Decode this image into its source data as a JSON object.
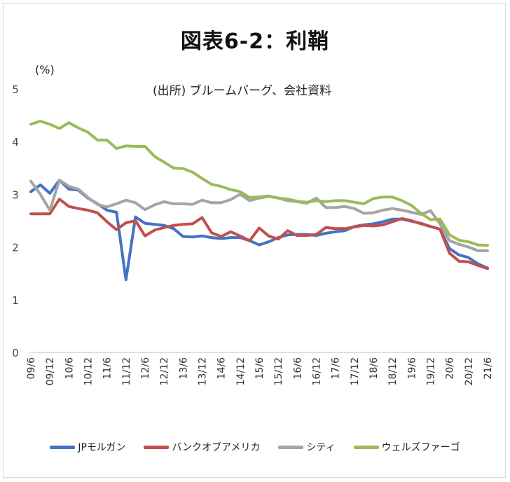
{
  "chart_data": {
    "type": "line",
    "title": "図表6-2：利鞘",
    "unit_label": "(%)",
    "source_note": "(出所)  ブルームバーグ、会社資料",
    "ylim": [
      0,
      5
    ],
    "yticks": [
      "0",
      "1",
      "2",
      "3",
      "4",
      "5"
    ],
    "grid": false,
    "legend_position": "bottom",
    "x_tick_labels": [
      "09/6",
      "09/12",
      "10/6",
      "10/12",
      "11/6",
      "11/12",
      "12/6",
      "12/12",
      "13/6",
      "13/12",
      "14/6",
      "14/12",
      "15/6",
      "15/12",
      "16/6",
      "16/12",
      "17/6",
      "17/12",
      "18/6",
      "18/12",
      "19/6",
      "19/12",
      "20/6",
      "20/12",
      "21/6"
    ],
    "x": [
      "09/6",
      "09/9",
      "09/12",
      "10/3",
      "10/6",
      "10/9",
      "10/12",
      "11/3",
      "11/6",
      "11/9",
      "11/12",
      "12/3",
      "12/6",
      "12/9",
      "12/12",
      "13/3",
      "13/6",
      "13/9",
      "13/12",
      "14/3",
      "14/6",
      "14/9",
      "14/12",
      "15/3",
      "15/6",
      "15/9",
      "15/12",
      "16/3",
      "16/6",
      "16/9",
      "16/12",
      "17/3",
      "17/6",
      "17/9",
      "17/12",
      "18/3",
      "18/6",
      "18/9",
      "18/12",
      "19/3",
      "19/6",
      "19/9",
      "19/12",
      "20/3",
      "20/6",
      "20/9",
      "20/12",
      "21/3",
      "21/6"
    ],
    "series": [
      {
        "name": "JPモルガン",
        "color": "#4472c4",
        "values": [
          3.05,
          3.18,
          3.02,
          3.27,
          3.1,
          3.08,
          2.93,
          2.82,
          2.7,
          2.66,
          1.38,
          2.57,
          2.45,
          2.43,
          2.41,
          2.35,
          2.2,
          2.19,
          2.21,
          2.18,
          2.16,
          2.18,
          2.18,
          2.12,
          2.04,
          2.1,
          2.18,
          2.23,
          2.24,
          2.24,
          2.22,
          2.26,
          2.29,
          2.31,
          2.39,
          2.42,
          2.44,
          2.48,
          2.53,
          2.53,
          2.49,
          2.45,
          2.39,
          2.34,
          1.97,
          1.85,
          1.8,
          1.68,
          1.6
        ]
      },
      {
        "name": "バンクオブアメリカ",
        "color": "#c0504d",
        "values": [
          2.63,
          2.63,
          2.63,
          2.91,
          2.77,
          2.73,
          2.7,
          2.65,
          2.48,
          2.33,
          2.46,
          2.5,
          2.21,
          2.32,
          2.37,
          2.41,
          2.43,
          2.44,
          2.56,
          2.27,
          2.2,
          2.29,
          2.21,
          2.12,
          2.36,
          2.21,
          2.15,
          2.31,
          2.22,
          2.22,
          2.24,
          2.37,
          2.35,
          2.35,
          2.38,
          2.41,
          2.4,
          2.42,
          2.48,
          2.54,
          2.5,
          2.44,
          2.39,
          2.34,
          1.88,
          1.73,
          1.72,
          1.65,
          1.59
        ]
      },
      {
        "name": "シティ",
        "color": "#a5a5a5",
        "values": [
          3.25,
          3.0,
          2.7,
          3.27,
          3.15,
          3.1,
          2.94,
          2.81,
          2.76,
          2.82,
          2.89,
          2.84,
          2.71,
          2.8,
          2.86,
          2.82,
          2.82,
          2.81,
          2.89,
          2.84,
          2.84,
          2.9,
          3.0,
          2.88,
          2.93,
          2.96,
          2.93,
          2.88,
          2.86,
          2.83,
          2.93,
          2.75,
          2.75,
          2.77,
          2.73,
          2.64,
          2.65,
          2.7,
          2.73,
          2.7,
          2.66,
          2.62,
          2.69,
          2.44,
          2.12,
          2.05,
          2.0,
          1.93,
          1.93
        ]
      },
      {
        "name": "ウェルズファーゴ",
        "color": "#9bbb59",
        "values": [
          4.33,
          4.39,
          4.33,
          4.25,
          4.36,
          4.26,
          4.18,
          4.03,
          4.03,
          3.87,
          3.92,
          3.91,
          3.91,
          3.72,
          3.61,
          3.5,
          3.49,
          3.42,
          3.3,
          3.19,
          3.15,
          3.09,
          3.05,
          2.94,
          2.95,
          2.97,
          2.93,
          2.91,
          2.87,
          2.85,
          2.88,
          2.86,
          2.88,
          2.88,
          2.85,
          2.82,
          2.92,
          2.95,
          2.95,
          2.88,
          2.79,
          2.64,
          2.52,
          2.53,
          2.23,
          2.13,
          2.1,
          2.04,
          2.03
        ]
      }
    ]
  }
}
